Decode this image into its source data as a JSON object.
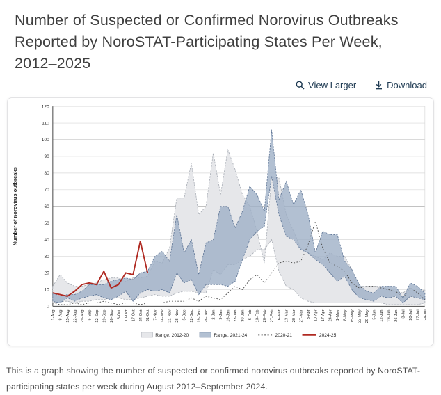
{
  "header": {
    "title": "Number of Suspected or Confirmed Norovirus Outbreaks Reported by NoroSTAT-Participating States Per Week, 2012–2025"
  },
  "toolbar": {
    "view_larger_label": "View Larger",
    "download_label": "Download"
  },
  "caption": {
    "text": "This is a graph showing the number of suspected or confirmed norovirus outbreaks reported by NoroSTAT-participating states per week during August 2012–September 2024."
  },
  "colors": {
    "link": "#1e3a52",
    "title_text": "#3f3f3f",
    "caption_text": "#4c4c4c",
    "band_2012_20_fill": "#e6e7ea",
    "band_2012_20_stroke": "#a7acb4",
    "band_2021_24_fill": "#9fb0c7",
    "band_2021_24_stroke": "#5c7394",
    "line_2020_21": "#4a4a4a",
    "line_2024_25": "#b02a22",
    "grid_light": "#d8d8d8",
    "grid_dark": "#9d9d9d",
    "axis": "#4a4a4a"
  },
  "chart_data": {
    "type": "area",
    "title": "",
    "xlabel": "",
    "ylabel": "Number of norovirus outbreaks",
    "ylim": [
      0,
      120
    ],
    "ytick_step": 10,
    "grid": true,
    "legend_position": "bottom",
    "categories": [
      "1-Aug",
      "8-Aug",
      "15-Aug",
      "22-Aug",
      "29-Aug",
      "5-Sep",
      "12-Sep",
      "19-Sep",
      "26-Sep",
      "3-Oct",
      "10-Oct",
      "17-Oct",
      "24-Oct",
      "31-Oct",
      "7-Nov",
      "14-Nov",
      "21-Nov",
      "28-Nov",
      "5-Dec",
      "12-Dec",
      "19-Dec",
      "26-Dec",
      "2-Jan",
      "9-Jan",
      "16-Jan",
      "23-Jan",
      "30-Jan",
      "6-Feb",
      "13-Feb",
      "20-Feb",
      "27-Feb",
      "6-Mar",
      "13-Mar",
      "20-Mar",
      "27-Mar",
      "3-Apr",
      "10-Apr",
      "17-Apr",
      "24-Apr",
      "1-May",
      "8-May",
      "15-May",
      "22-May",
      "29-May",
      "5-Jun",
      "12-Jun",
      "19-Jun",
      "26-Jun",
      "3-Jul",
      "10-Jul",
      "17-Jul",
      "24-Jul"
    ],
    "series": [
      {
        "name": "Range, 2012-20",
        "type": "band",
        "max": [
          12,
          19,
          14,
          12,
          12,
          13,
          14,
          16,
          17,
          17,
          15,
          17,
          17,
          18,
          27,
          26,
          35,
          65,
          65,
          86,
          55,
          60,
          92,
          67,
          94,
          82,
          67,
          60,
          45,
          26,
          78,
          77,
          55,
          45,
          35,
          32,
          30,
          28,
          32,
          30,
          30,
          22,
          12,
          12,
          12,
          12,
          10,
          9,
          8,
          11,
          8,
          10
        ],
        "min": [
          2,
          3,
          3,
          2,
          3,
          3,
          4,
          4,
          5,
          5,
          4,
          4,
          5,
          6,
          7,
          6,
          6,
          8,
          9,
          9,
          8,
          8,
          22,
          19,
          25,
          25,
          28,
          30,
          34,
          34,
          40,
          21,
          12,
          10,
          5,
          3,
          2,
          2,
          2,
          2,
          2,
          2,
          2,
          2,
          2,
          2,
          1,
          1,
          1,
          1,
          1,
          2
        ]
      },
      {
        "name": "Range, 2021-24",
        "type": "band",
        "max": [
          8,
          6,
          7,
          7,
          9,
          13,
          13,
          13,
          15,
          16,
          17,
          16,
          20,
          21,
          30,
          33,
          27,
          55,
          32,
          40,
          19,
          38,
          40,
          60,
          60,
          47,
          57,
          72,
          67,
          57,
          106,
          64,
          75,
          61,
          70,
          55,
          32,
          45,
          43,
          43,
          27,
          22,
          13,
          9,
          8,
          12,
          12,
          12,
          5,
          14,
          12,
          8
        ],
        "min": [
          3,
          2,
          5,
          3,
          5,
          6,
          7,
          5,
          4,
          6,
          9,
          3,
          8,
          10,
          9,
          10,
          8,
          20,
          14,
          16,
          7,
          13,
          13,
          13,
          12,
          15,
          28,
          40,
          45,
          48,
          78,
          55,
          42,
          40,
          34,
          32,
          28,
          25,
          20,
          15,
          18,
          10,
          5,
          4,
          3,
          6,
          5,
          6,
          2,
          6,
          5,
          4
        ]
      },
      {
        "name": "2020-21",
        "type": "dotted-line",
        "values": [
          2,
          1,
          1,
          2,
          1,
          2,
          2,
          3,
          2,
          1,
          2,
          2,
          1,
          2,
          2,
          2,
          3,
          3,
          3,
          5,
          3,
          6,
          5,
          4,
          8,
          12,
          10,
          16,
          19,
          14,
          20,
          26,
          27,
          26,
          27,
          37,
          51,
          35,
          26,
          24,
          21,
          14,
          11,
          12,
          12,
          11,
          10,
          9,
          5,
          11,
          8,
          4
        ]
      },
      {
        "name": "2024-25",
        "type": "line",
        "values": [
          8,
          7,
          6,
          9,
          13,
          14,
          13,
          21,
          11,
          13,
          20,
          19,
          39,
          20
        ]
      }
    ]
  }
}
